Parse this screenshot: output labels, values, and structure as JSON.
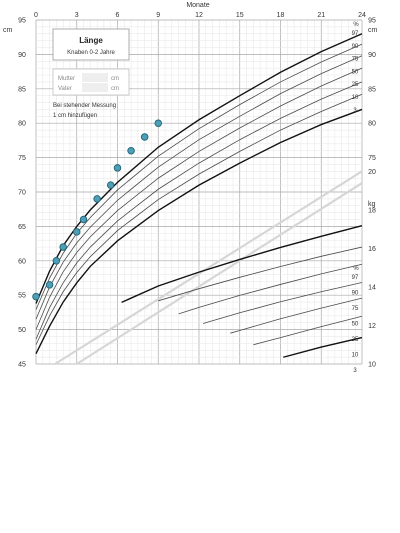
{
  "chart_data": {
    "type": "line",
    "title": "Länge",
    "subtitle": "Knaben 0-2 Jahre",
    "xlabel": "Monate",
    "x_ticks": [
      0,
      3,
      6,
      9,
      12,
      15,
      18,
      21,
      24
    ],
    "xlim": [
      0,
      24
    ],
    "ylabel_left": "cm",
    "ylabel_right_top": "cm",
    "ylabel_right_weight": "kg",
    "ylim_length": [
      45,
      95
    ],
    "length_ticks": [
      45,
      50,
      55,
      60,
      65,
      70,
      75,
      80,
      85,
      90,
      95
    ],
    "right_length_ticks": [
      75,
      80,
      85,
      90,
      95
    ],
    "weight_ticks": [
      10,
      12,
      14,
      16,
      18,
      20
    ],
    "weight_axis": {
      "kg_at_cm": [
        [
          10,
          45
        ],
        [
          20,
          73
        ]
      ]
    },
    "grid": true,
    "parents": {
      "mother_label": "Mutter",
      "father_label": "Vater",
      "unit": "cm"
    },
    "note_line1": "Bei stehender Messung",
    "note_line2": "1 cm hinzufügen",
    "length_percentile_labels": [
      "%",
      "97",
      "90",
      "75",
      "50",
      "25",
      "10",
      "3"
    ],
    "weight_percentile_labels": [
      "%",
      "97",
      "90",
      "75",
      "50",
      "25",
      "10",
      "3"
    ],
    "length_series": [
      {
        "name": "97",
        "x": [
          0,
          1,
          2,
          3,
          4,
          6,
          9,
          12,
          15,
          18,
          21,
          24
        ],
        "y": [
          53.8,
          58.5,
          62.2,
          65.0,
          67.4,
          71.4,
          76.5,
          80.5,
          84.0,
          87.4,
          90.4,
          93.0
        ]
      },
      {
        "name": "90",
        "x": [
          0,
          1,
          2,
          3,
          4,
          6,
          9,
          12,
          15,
          18,
          21,
          24
        ],
        "y": [
          52.9,
          57.5,
          61.1,
          64.0,
          66.3,
          70.3,
          75.2,
          79.2,
          82.7,
          86.0,
          88.9,
          91.5
        ]
      },
      {
        "name": "75",
        "x": [
          0,
          1,
          2,
          3,
          4,
          6,
          9,
          12,
          15,
          18,
          21,
          24
        ],
        "y": [
          51.5,
          56.2,
          59.8,
          62.6,
          64.9,
          68.8,
          73.6,
          77.6,
          81.0,
          84.3,
          87.2,
          89.8
        ]
      },
      {
        "name": "50",
        "x": [
          0,
          1,
          2,
          3,
          4,
          6,
          9,
          12,
          15,
          18,
          21,
          24
        ],
        "y": [
          50.0,
          54.7,
          58.4,
          61.2,
          63.5,
          67.3,
          72.0,
          75.9,
          79.3,
          82.5,
          85.4,
          88.0
        ]
      },
      {
        "name": "25",
        "x": [
          0,
          1,
          2,
          3,
          4,
          6,
          9,
          12,
          15,
          18,
          21,
          24
        ],
        "y": [
          48.6,
          53.2,
          56.8,
          59.7,
          62.0,
          65.8,
          70.4,
          74.2,
          77.6,
          80.7,
          83.5,
          86.0
        ]
      },
      {
        "name": "10",
        "x": [
          0,
          1,
          2,
          3,
          4,
          6,
          9,
          12,
          15,
          18,
          21,
          24
        ],
        "y": [
          47.8,
          52.0,
          55.5,
          58.3,
          60.6,
          64.4,
          68.9,
          72.6,
          75.9,
          79.0,
          81.7,
          84.2
        ]
      },
      {
        "name": "3",
        "x": [
          0,
          1,
          2,
          3,
          4,
          6,
          9,
          12,
          15,
          18,
          21,
          24
        ],
        "y": [
          46.5,
          50.5,
          54.0,
          56.8,
          59.2,
          62.9,
          67.3,
          71.0,
          74.2,
          77.2,
          79.8,
          82.0
        ]
      }
    ],
    "weight_series": [
      {
        "name": "97",
        "x": [
          6.3,
          9,
          12,
          15,
          18,
          21,
          24
        ],
        "y": [
          13.2,
          14.05,
          14.77,
          15.43,
          16.05,
          16.63,
          17.18
        ]
      },
      {
        "name": "90",
        "x": [
          9,
          12,
          15,
          18,
          21,
          24
        ],
        "y": [
          13.28,
          13.91,
          14.5,
          15.06,
          15.59,
          16.07
        ]
      },
      {
        "name": "75",
        "x": [
          10.5,
          12,
          15,
          18,
          21,
          24
        ],
        "y": [
          12.6,
          12.94,
          13.56,
          14.13,
          14.68,
          15.18
        ]
      },
      {
        "name": "50",
        "x": [
          12.3,
          15,
          18,
          21,
          24
        ],
        "y": [
          12.1,
          12.66,
          13.23,
          13.75,
          14.23
        ]
      },
      {
        "name": "25",
        "x": [
          14.3,
          15,
          18,
          21,
          24
        ],
        "y": [
          11.6,
          11.74,
          12.35,
          12.9,
          13.42
        ]
      },
      {
        "name": "10",
        "x": [
          16.0,
          18,
          21,
          24
        ],
        "y": [
          11.0,
          11.37,
          11.94,
          12.48
        ]
      },
      {
        "name": "3",
        "x": [
          18.2,
          21,
          24
        ],
        "y": [
          10.35,
          10.88,
          11.37
        ]
      }
    ],
    "reference_lines": [
      {
        "x": [
          1.4,
          24
        ],
        "y": [
          45,
          73
        ]
      },
      {
        "x": [
          3.0,
          24
        ],
        "y": [
          45,
          71.3
        ]
      }
    ],
    "measurements": {
      "x": [
        0,
        1.0,
        1.5,
        2.0,
        3.0,
        3.5,
        4.5,
        5.5,
        6.0,
        7.0,
        8.0,
        9.0
      ],
      "y": [
        54.8,
        56.5,
        60.0,
        62.0,
        64.2,
        66.0,
        69.0,
        71.0,
        73.5,
        76.0,
        78.0,
        80.0
      ]
    },
    "colors": {
      "percentile_line": "#4a4a4a",
      "percentile_line_bold": "#111111",
      "reference_line": "#d6d6d6",
      "measurement_fill": "#4e9eb5",
      "measurement_stroke": "#1f6376",
      "grid_minor": "#e6e6e6",
      "grid_major": "#a8a8a8"
    }
  }
}
